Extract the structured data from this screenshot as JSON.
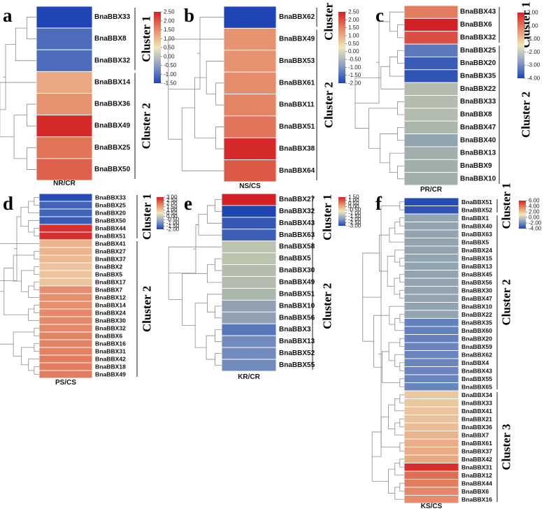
{
  "chart_data": [
    {
      "panel": "a",
      "type": "heatmap",
      "xlabel": "NR/CR",
      "genes": [
        "BnaBBX33",
        "BnaBBX8",
        "BnaBBX32",
        "BnaBBX14",
        "BnaBBX36",
        "BnaBBX49",
        "BnaBBX25",
        "BnaBBX50"
      ],
      "values": [
        -1.5,
        -1.1,
        -1.1,
        0.9,
        1.2,
        2.4,
        1.6,
        1.8
      ],
      "scale": {
        "min": -1.5,
        "max": 2.5,
        "ticks": [
          "2.50",
          "2.00",
          "1.50",
          "1.00",
          "0.50",
          "0.00",
          "-0.50",
          "-1.00",
          "-1.50"
        ]
      },
      "clusters": [
        {
          "label": "Cluster 1",
          "count": 3
        },
        {
          "label": "Cluster 2",
          "count": 5
        }
      ]
    },
    {
      "panel": "b",
      "type": "heatmap",
      "xlabel": "NS/CS",
      "genes": [
        "BnaBBX62",
        "BnaBBX49",
        "BnaBBX53",
        "BnaBBX61",
        "BnaBBX11",
        "BnaBBX51",
        "BnaBBX38",
        "BnaBBX64"
      ],
      "values": [
        -2.0,
        1.2,
        1.2,
        1.3,
        1.4,
        1.6,
        2.4,
        1.9
      ],
      "scale": {
        "min": -2.0,
        "max": 2.5,
        "ticks": [
          "2.50",
          "2.00",
          "1.50",
          "1.00",
          "0.50",
          "0.00",
          "-0.50",
          "-1.00",
          "-1.50",
          "-2.00"
        ]
      },
      "clusters": [
        {
          "label": "Cluster 1",
          "count": 1
        },
        {
          "label": "Cluster 2",
          "count": 7
        }
      ]
    },
    {
      "panel": "c",
      "type": "heatmap",
      "xlabel": "PR/CR",
      "genes": [
        "BnaBBX43",
        "BnaBBX6",
        "BnaBBX32",
        "BnaBBX25",
        "BnaBBX20",
        "BnaBBX35",
        "BnaBBX22",
        "BnaBBX33",
        "BnaBBX8",
        "BnaBBX47",
        "BnaBBX40",
        "BnaBBX13",
        "BnaBBX9",
        "BnaBBX10"
      ],
      "values": [
        1.2,
        2.0,
        1.6,
        -2.6,
        -3.4,
        -3.6,
        -0.8,
        -0.8,
        -0.8,
        -0.9,
        -1.4,
        -1.1,
        -1.1,
        -1.1
      ],
      "scale": {
        "min": -4.0,
        "max": 2.0,
        "ticks": [
          "2.00",
          "1.00",
          "-1.00",
          "-2.00",
          "-3.00",
          "-4.00"
        ]
      },
      "clusters": [
        {
          "label": "Cluster 1",
          "count": 3
        },
        {
          "label": "Cluster 2",
          "count": 11
        }
      ]
    },
    {
      "panel": "d",
      "type": "heatmap",
      "xlabel": "PS/CS",
      "genes": [
        "BnaBBX33",
        "BnaBBX25",
        "BnaBBX20",
        "BnaBBX50",
        "BnaBBX44",
        "BnaBBX51",
        "BnaBBX41",
        "BnaBBX27",
        "BnaBBX37",
        "BnaBBX2",
        "BnaBBX5",
        "BnaBBX17",
        "BnaBBX7",
        "BnaBBX12",
        "BnaBBX14",
        "BnaBBX24",
        "BnaBBX30",
        "BnaBBX32",
        "BnaBBX6",
        "BnaBBX16",
        "BnaBBX31",
        "BnaBBX42",
        "BnaBBX18",
        "BnaBBX49"
      ],
      "values": [
        -1.9,
        -1.6,
        -1.6,
        -1.7,
        2.8,
        2.8,
        0.9,
        0.9,
        0.8,
        0.6,
        0.6,
        0.6,
        1.5,
        1.5,
        1.5,
        1.6,
        1.6,
        1.6,
        1.7,
        1.7,
        1.7,
        1.8,
        1.8,
        1.8
      ],
      "scale": {
        "min": -2.0,
        "max": 3.0,
        "ticks": [
          "3.00",
          "2.50",
          "2.00",
          "1.50",
          "1.00",
          "0.50",
          "0.00",
          "-0.50",
          "-1.00",
          "-1.50",
          "-2.00"
        ]
      },
      "clusters": [
        {
          "label": "Cluster 1",
          "count": 6
        },
        {
          "label": "Cluster 2",
          "count": 18
        }
      ]
    },
    {
      "panel": "e",
      "type": "heatmap",
      "xlabel": "KR/CR",
      "genes": [
        "BnaBBX27",
        "BnaBBX32",
        "BnaBBX43",
        "BnaBBX63",
        "BnaBBX58",
        "BnaBBX5",
        "BnaBBX30",
        "BnaBBX49",
        "BnaBBX51",
        "BnaBBX10",
        "BnaBBX56",
        "BnaBBX3",
        "BnaBBX13",
        "BnaBBX52",
        "BnaBBX55"
      ],
      "values": [
        1.5,
        -3.0,
        -2.6,
        -2.5,
        -0.5,
        -0.5,
        -0.6,
        -0.6,
        -0.7,
        -1.1,
        -1.1,
        -2.0,
        -1.6,
        -1.6,
        -1.6
      ],
      "scale": {
        "min": -3.0,
        "max": 1.5,
        "ticks": [
          "1.50",
          "1.00",
          "0.50",
          "0.00",
          "-0.50",
          "-1.00",
          "-1.50",
          "-2.00",
          "-2.50",
          "-3.00"
        ]
      },
      "clusters": [
        {
          "label": "Cluster 1",
          "count": 4
        },
        {
          "label": "Cluster 2",
          "count": 11
        }
      ]
    },
    {
      "panel": "f",
      "type": "heatmap",
      "xlabel": "KS/CS",
      "genes": [
        "BnaBBX51",
        "BnaBBX52",
        "BnaBBX1",
        "BnaBBX40",
        "BnaBBX63",
        "BnaBBX5",
        "BnaBBX24",
        "BnaBBX15",
        "BnaBBX13",
        "BnaBBX45",
        "BnaBBX56",
        "BnaBBX30",
        "BnaBBX47",
        "BnaBBX10",
        "BnaBBX22",
        "BnaBBX35",
        "BnaBBX60",
        "BnaBBX20",
        "BnaBBX59",
        "BnaBBX62",
        "BnaBBX4",
        "BnaBBX43",
        "BnaBBX55",
        "BnaBBX65",
        "BnaBBX34",
        "BnaBBX33",
        "BnaBBX41",
        "BnaBBX21",
        "BnaBBX36",
        "BnaBBX7",
        "BnaBBX61",
        "BnaBBX37",
        "BnaBBX42",
        "BnaBBX31",
        "BnaBBX12",
        "BnaBBX44",
        "BnaBBX6",
        "BnaBBX16"
      ],
      "values": [
        -3.8,
        -3.6,
        -1.4,
        -1.4,
        -1.4,
        -1.4,
        -1.4,
        -1.4,
        -1.4,
        -1.4,
        -1.4,
        -1.4,
        -1.4,
        -1.4,
        -1.4,
        -2.4,
        -2.4,
        -2.4,
        -2.3,
        -2.3,
        -2.3,
        -2.3,
        -2.3,
        -2.3,
        1.0,
        1.1,
        1.2,
        1.3,
        1.5,
        1.8,
        2.0,
        2.1,
        2.2,
        5.6,
        4.0,
        3.6,
        3.3,
        3.1
      ],
      "scale": {
        "min": -4.0,
        "max": 6.0,
        "ticks": [
          "6.00",
          "4.00",
          "2.00",
          "0.00",
          "-2.00",
          "-4.00"
        ]
      },
      "clusters": [
        {
          "label": "Cluster 1",
          "count": 2
        },
        {
          "label": "Cluster 2",
          "count": 22
        },
        {
          "label": "Cluster 3",
          "count": 14
        }
      ]
    }
  ]
}
